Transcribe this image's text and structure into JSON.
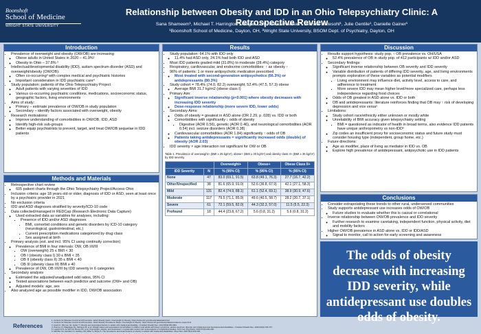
{
  "header": {
    "logo": [
      "Boonshoft",
      "School of Medicine",
      "WRIGHT STATE UNIVERSITY"
    ],
    "title": "Relationship between Obesity and IDD in an Ohio Telepsychiatry Clinic: A Retrospective Review",
    "authors": "Sana Shameem¹, Michael T. Harrington¹, Megan Luft¹, Ramzi Nahhas², Michael Hatesohl¹, Julie Gentile¹, Danielle Gainer¹",
    "affiliations": "¹Boonshoft School of Medicine, Dayton, OH, ²Wright State University, BSOM Dept. of Psychiatry, Dayton, OH"
  },
  "introduction": {
    "title": "Introduction",
    "items": [
      {
        "text": "Prevalence of overweight and obesity (OW/OB) are increasing",
        "items": [
          {
            "text": "Obese adults in United States in 2020 – 41.9%¹"
          },
          {
            "text": "Obesity in Ohio – 37.8% ²"
          }
        ]
      },
      {
        "text": "Intellectual/developmental disability (IDD), autism spectrum disorder (ASD) and overweight/obesity (OW/OB):",
        "items": [
          {
            "text": "Often co-occurring³ with complex medical and psychiatric histories"
          },
          {
            "text": "Important consideration in IDD psychiatric care⁴"
          }
        ]
      },
      {
        "text": "Study population: patients of the Ohio Telepsychiatry Project",
        "items": [
          {
            "text": "Adult patients with varying severities of IDD"
          },
          {
            "text": "Various co-occurring psychiatric conditions, medications, socioeconomic status, geographic factors, living environments"
          }
        ]
      },
      {
        "text": "Aims of study:",
        "items": [
          {
            "text": "Primary – estimate prevalence of OW/OB in study population"
          },
          {
            "text": "Secondary – identify factors associated with overweight, obesity"
          }
        ]
      },
      {
        "text": "Research motivations:",
        "items": [
          {
            "text": "Improve understanding of comorbidities in OW/OB, IDD, ASD"
          },
          {
            "text": "Identify high-risk sub-groups"
          },
          {
            "text": "Better equip psychiatrists to prevent, target, and treat OW/OB sequelae in IDD patients"
          }
        ]
      }
    ]
  },
  "methods": {
    "title": "Methods and Materials",
    "items": [
      {
        "text": "Retrospective chart review",
        "items": [
          {
            "text": "605 patient charts through the Ohio Telepsychiatry Project/Access Ohio"
          }
        ]
      },
      {
        "text": "Inclusion criteria: age 18 years old or older, diagnosis of IDD or ASD, seen at least once by a psychiatric provider in 2021"
      },
      {
        "text": "No exclusion criteria"
      },
      {
        "text": "IDD and ASD diagnoses stratified by severity/ICD-10 code"
      },
      {
        "text": "Data collected/managed in REDCap (Research Electronic Data Capture)",
        "items": [
          {
            "text": "Used extracted data as variables for analyses, including:",
            "items": [
              {
                "text": "Presence of IDD and/or ASD diagnoses",
                "items": [
                  {
                    "text": "BMI, comorbid conditions and genetic disorders by ICD-10 category (neurological, gastrointestinal, etc.)"
                  },
                  {
                    "text": "Current prescription medications categorized by drug class"
                  },
                  {
                    "text": "Sex assigned at birth"
                  }
                ]
              }
            ]
          }
        ]
      },
      {
        "text": "Primary analysis (est. and incl. 95% CI using continuity correction)",
        "items": [
          {
            "text": "Prevalence of BMI in four intervals: OW, OB I/II/III",
            "items": [
              {
                "text": "OW (overweight) 25 ≤ BMI < 30"
              },
              {
                "text": "OB I (obesity class I) 30 ≤ BMI < 35"
              },
              {
                "text": "OB II (obesity class II) 35 ≤ BMI < 40"
              },
              {
                "text": "OB III (obesity class III) BMI ≥ 40"
              }
            ]
          },
          {
            "text": "Prevalence of OW, OB I/II/III by IDD severity in 6 categories"
          }
        ]
      },
      {
        "text": "Secondary analysis",
        "items": [
          {
            "text": "Estimated the adjusted/unadjusted odd ratios, 95% CI"
          },
          {
            "text": "Tested associations between each predictor and outcome (OW+ and OB)"
          },
          {
            "text": "Adjusted models: age, sex"
          }
        ]
      },
      {
        "text": "Also analyzed age as possible modifier in IDD, OW/OB association"
      }
    ]
  },
  "results": {
    "title": "Results",
    "items": [
      {
        "text": "Study population: 64.1% with IDD only",
        "items": [
          {
            "text": "11.4% had ASD only, 24.1% had both IDD and ASD"
          }
        ]
      },
      {
        "text": "Most IDD patients graded mild (31.8%) to moderate (28.4%) category"
      },
      {
        "text": "Respiratory, cardiovascular, and endocrine comorbidities: ↑ as obesity ↑"
      },
      {
        "text": "96% of patients: 1 or more antipsychotic medication prescribed",
        "items": [
          {
            "text": "Most treated with second-generation antipsychotics (66.3%) or antidepressants (80.3%)",
            "color": "#1f4fc4"
          }
        ]
      },
      {
        "text": "Study cohort = 78.4% (74.0, 82.2) overweight, 52.4% (47.5, 57.3) obese",
        "items": [
          {
            "text": "Average BMI 31.7 kg/m2 (obese class I)"
          }
        ]
      },
      {
        "text": "Primary Aim:",
        "items": [
          {
            "text": "Significant inverse relationship (p<0.001) where obesity decreases with increasing IDD severity",
            "color": "#1f4fc4"
          },
          {
            "text": "Dose-response relationship (more severe IDD, lower odds)",
            "color": "#1f4fc4"
          }
        ]
      },
      {
        "text": "Secondary Aims:",
        "items": [
          {
            "text": "Odds of obesity = greatest in ASD alone (OR 2.29, p .028) vs. IDD or both"
          },
          {
            "text": "Comorbidities with significantly ↓ odds of obesity",
            "items": [
              {
                "text": "Digestive (AOR 0.56), genetic (AOR 0.46), and neurological comorbidities (AOR 0.54) incl. seizure disorders (AOR 0.38)"
              }
            ]
          },
          {
            "text": "Cardiovascular comorbidities (AOR 1.84) significantly ↑ odds of OB"
          },
          {
            "text": "Patients taking antidepressants = significantly increased odds (double) of obesity (AOR 2.03)",
            "color": "#1f4fc4"
          }
        ]
      },
      {
        "text": "IDD severity × age interaction not significant for OW or OB"
      }
    ],
    "table": {
      "caption": "Table 1. Prevalence of overweight+ (BMI ≥ 25 kg/m²), obese+ (BMI ≥ 30 kg/m²) and obesity class II+ (BMI ≥ 35 kg/m²) by IDD severity",
      "groups": [
        "Overweight+",
        "Obese+",
        "Obese Class II+"
      ],
      "columns": [
        "IDD Severity",
        "N",
        "% (95% CI)",
        "% (95% CI)",
        "% (95% CI)"
      ],
      "rows": [
        [
          "None",
          47,
          "83.0 (69.1, 91.5)",
          "63.8 (49.1, 76.3)",
          "27.7 (16.7, 42.2)"
        ],
        [
          "Other/Unspecified",
          38,
          "81.6 (65.9, 91.0)",
          "52.6 (36.8, 67.9)",
          "42.1 (27.1, 58.3)"
        ],
        [
          "Mild",
          131,
          "82.4 (74.9, 88.1)",
          "61.1 (52.4, 69.1)",
          "38.9 (30.9, 47.6)"
        ],
        [
          "Moderate",
          117,
          "79.5 (71.1, 85.9)",
          "49.6 (40.5, 58.7)",
          "28.2 (20.7, 37.1)"
        ],
        [
          "Severe",
          61,
          "72.1 (59.5, 82.0)",
          "44.3 (32.3, 57.0)",
          "11.5 (5.5, 22.3)"
        ],
        [
          "Profound",
          18,
          "44.4 (23.8, 67.2)",
          "5.6 (0.8, 31.2)",
          "5.6 (0.8, 31.2)"
        ]
      ]
    }
  },
  "discussion": {
    "title": "Discussion",
    "items": [
      {
        "text": "Results support hypothesis: study pop. ↑ OB prevalence vs. OH/USA",
        "items": [
          {
            "text": "52.4% prevalence of OB in study pop. of 412 participants w/ IDD and/or ASD"
          }
        ]
      },
      {
        "text": "Secondary findings:",
        "items": [
          {
            "text": "Significant inverse relationship between OB severity and IDD severity"
          },
          {
            "text": "Variable distribution of patients of differing IDD severity, age, and living environments prompts exploration of these variables as potential modifiers",
            "items": [
              {
                "text": "Living environment may influence diet, activity level, access to care, and adherence to treatment"
              },
              {
                "text": "More severe IDD may mean higher level/more specialized care, perhaps less independence regarding food choices"
              }
            ]
          },
          {
            "text": "Odds of OB greatest in ASD alone vs. IDD or both"
          },
          {
            "text": "OB and antidepressants: literature reinforces finding that OB may ↑ risk of developing depression and vice versa⁵"
          }
        ]
      },
      {
        "text": "Limitations:",
        "items": [
          {
            "text": "Study cohort race/ethnicity either unknown or mostly white"
          },
          {
            "text": "Unreliability of BMI accuracy given telepsychiatry setting",
            "items": [
              {
                "text": "BMI = questioned as indicator of health in broad terms, also evidence IDD patients have unique anthropometry vs non-IDD⁶"
              }
            ]
          },
          {
            "text": "Zip codes an insufficient proxy for socioeconomic status and future study must consider housing type (independent, group home, etc.)"
          }
        ]
      },
      {
        "text": "Future directions:",
        "items": [
          {
            "text": "Age as modifier, place of living as mediator in IDD vs. OB"
          },
          {
            "text": "Explore high prevalence of antidepressant, antipsychotic use in IDD patients"
          }
        ]
      }
    ]
  },
  "conclusions": {
    "title": "Conclusions",
    "items": [
      {
        "text": "Consider extrapolating these trends to other rural, underserved communities"
      },
      {
        "text": "Study supports antidepressant use increases odds of OW/OB",
        "items": [
          {
            "text": "Future studies to evaluate whether this is causal or correlational"
          }
        ]
      },
      {
        "text": "Inverse relationship between OW/OB prevalence and IDD severity",
        "items": [
          {
            "text": "Further research to examine caretaking, independent function, physical activity, diet and mobility factors"
          }
        ]
      },
      {
        "text": "Higher OW/OB prevalence in ASD alone vs. IDD or IDD/ASD",
        "items": [
          {
            "text": "Signal to monitor, call to action for early screening and awareness"
          }
        ]
      }
    ]
  },
  "highlight": "The odds of obesity decrease with increasing IDD severity, while antidepressant use doubles odds of obesity.",
  "references": {
    "title": "References",
    "items": [
      "1. Centers for Disease Control and Prevention. Adult Obesity Facts. Overweight & Obesity. https://www.cdc.gov/obesity/data/adult.html",
      "2. Centers for Disease Control and Prevention. Adult Obesity Prevalence Maps. Overweight & Obesity. https://www.cdc.gov/obesity/data/prevalence-maps.html",
      "3. Hsieh K, Rimmer JH, Heller T. Obesity and associated factors in adults with intellectual disability. J Intellect Disabil Res. 2014;58(9):851-863.",
      "4. Ptomey LT, Walpitage DL, Mohseni M, et al. Weight status and associated comorbidities in children and adults with Down syndrome, autism spectrum disorder and intellectual and developmental disabilities. J Intellect Disabil Res. 2020;64(9):725-737.",
      "5. Luppino FS, de Wit LM, Bouvy PF, et al. Overweight, obesity, and depression: a systematic review and meta-analysis of longitudinal studies. Arch Gen Psychiatry. 2010;67(3):220-229.",
      "6. Melville CA, Hamilton S, Hankey CR, Miller S, Boyle S. The prevalence and determinants of obesity in adults with intellectual disabilities. Obes Rev. 2007;8(3):223-230."
    ]
  }
}
